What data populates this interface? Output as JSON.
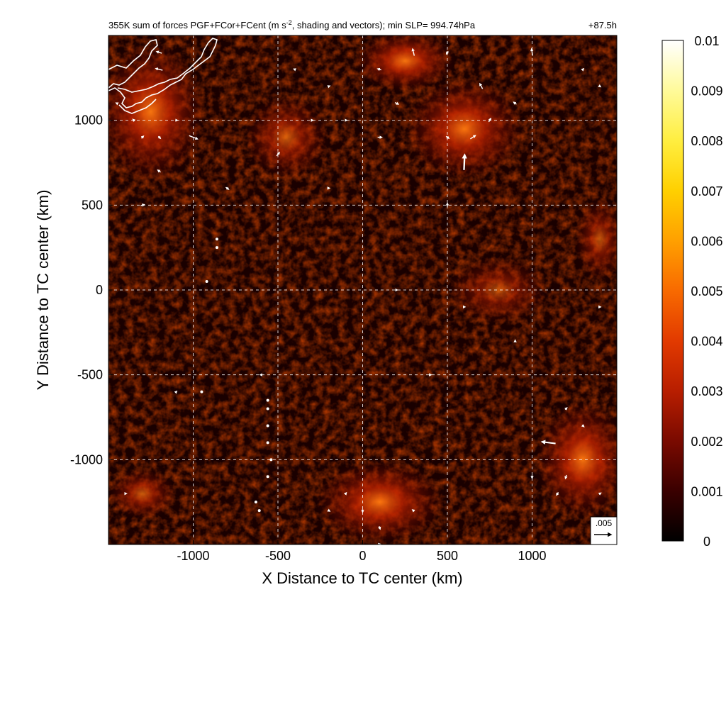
{
  "chart_data": {
    "type": "heatmap",
    "title": "355K sum of forces PGF+FCor+FCent (m s",
    "title_superscript": "-2",
    "title_rest": ", shading and vectors); min SLP= 994.74hPa",
    "forecast_hour": "+87.5h",
    "xlabel": "X Distance to TC center (km)",
    "ylabel": "Y Distance to TC center (km)",
    "xlim": [
      -1500,
      1500
    ],
    "ylim": [
      -1500,
      1500
    ],
    "x_ticks": [
      -1000,
      -500,
      0,
      500,
      1000
    ],
    "y_ticks": [
      -1000,
      -500,
      0,
      500,
      1000
    ],
    "x_tick_labels": [
      "-1000",
      "-500",
      "0",
      "500",
      "1000"
    ],
    "y_tick_labels": [
      "-1000",
      "-500",
      "0",
      "500",
      "1000"
    ],
    "grid": true,
    "colorbar": {
      "min": 0,
      "max": 0.01,
      "ticks": [
        0,
        0.001,
        0.002,
        0.003,
        0.004,
        0.005,
        0.006,
        0.007,
        0.008,
        0.009,
        0.01
      ],
      "tick_labels": [
        "0",
        "0.001",
        "0.002",
        "0.003",
        "0.004",
        "0.005",
        "0.006",
        "0.007",
        "0.008",
        "0.009",
        "0.01"
      ],
      "colors": [
        "#000000",
        "#3a0000",
        "#7a0a00",
        "#b81e00",
        "#e23a00",
        "#f86a00",
        "#ffa000",
        "#ffd000",
        "#ffee40",
        "#fffa9a",
        "#ffffff"
      ]
    },
    "reference_vector": {
      "label": ".005",
      "magnitude": 0.005
    },
    "intensity_regions": [
      {
        "x": -1250,
        "y": 1050,
        "rx": 320,
        "ry": 420,
        "value": 0.003
      },
      {
        "x": 600,
        "y": 950,
        "rx": 350,
        "ry": 300,
        "value": 0.003
      },
      {
        "x": 250,
        "y": 1350,
        "rx": 300,
        "ry": 180,
        "value": 0.0025
      },
      {
        "x": 100,
        "y": -1250,
        "rx": 380,
        "ry": 250,
        "value": 0.0028
      },
      {
        "x": 1300,
        "y": -1000,
        "rx": 280,
        "ry": 350,
        "value": 0.0025
      },
      {
        "x": -1300,
        "y": -1200,
        "rx": 200,
        "ry": 150,
        "value": 0.0015
      },
      {
        "x": -450,
        "y": 900,
        "rx": 250,
        "ry": 250,
        "value": 0.0015
      },
      {
        "x": 800,
        "y": 0,
        "rx": 300,
        "ry": 200,
        "value": 0.001
      },
      {
        "x": 1400,
        "y": 300,
        "rx": 150,
        "ry": 250,
        "value": 0.0012
      }
    ],
    "vectors": [
      {
        "x": 600,
        "y": 750,
        "u": 0.0002,
        "v": 0.0045
      },
      {
        "x": 650,
        "y": 900,
        "u": 0.0015,
        "v": 0.001
      },
      {
        "x": 1100,
        "y": -900,
        "u": -0.004,
        "v": 0.0005
      },
      {
        "x": -1000,
        "y": 900,
        "u": 0.0025,
        "v": -0.001
      },
      {
        "x": 300,
        "y": 1400,
        "u": -0.0005,
        "v": 0.002
      },
      {
        "x": 1000,
        "y": 1400,
        "u": -0.0003,
        "v": 0.002
      },
      {
        "x": -1200,
        "y": 1300,
        "u": -0.002,
        "v": 0.0005
      },
      {
        "x": -1200,
        "y": 1400,
        "u": -0.0015,
        "v": 0.0005
      },
      {
        "x": -500,
        "y": 800,
        "u": 0.0008,
        "v": 0.001
      },
      {
        "x": -1300,
        "y": 500,
        "u": 0.001,
        "v": 0.0003
      },
      {
        "x": -1200,
        "y": 700,
        "u": -0.0008,
        "v": 0.0006
      },
      {
        "x": -800,
        "y": 600,
        "u": 0.0008,
        "v": -0.0006
      },
      {
        "x": 700,
        "y": 1200,
        "u": -0.0008,
        "v": 0.0015
      },
      {
        "x": 500,
        "y": 1400,
        "u": -0.0005,
        "v": -0.0008
      },
      {
        "x": 100,
        "y": 1300,
        "u": -0.001,
        "v": 0.0003
      },
      {
        "x": 100,
        "y": 900,
        "u": 0.0012,
        "v": 0.0
      },
      {
        "x": 200,
        "y": 1100,
        "u": 0.001,
        "v": -0.0005
      },
      {
        "x": 900,
        "y": 1100,
        "u": -0.0008,
        "v": 0.0006
      },
      {
        "x": 750,
        "y": 1000,
        "u": 0.0006,
        "v": 0.001
      },
      {
        "x": 500,
        "y": 900,
        "u": 0.0008,
        "v": -0.0006
      },
      {
        "x": 500,
        "y": 500,
        "u": 0.0,
        "v": 0.001
      },
      {
        "x": -1300,
        "y": 900,
        "u": 0.0006,
        "v": 0.0006
      },
      {
        "x": -1200,
        "y": 900,
        "u": 0.0006,
        "v": -0.0006
      },
      {
        "x": -1100,
        "y": 1000,
        "u": 0.0006,
        "v": 0.0
      },
      {
        "x": -1350,
        "y": 1000,
        "u": -0.0005,
        "v": 0.0005
      },
      {
        "x": -300,
        "y": 1000,
        "u": 0.0006,
        "v": 0.0
      },
      {
        "x": -100,
        "y": 1000,
        "u": 0.0006,
        "v": 0.0
      },
      {
        "x": -200,
        "y": 1200,
        "u": 0.0005,
        "v": 0.0002
      },
      {
        "x": -400,
        "y": 1300,
        "u": -0.0005,
        "v": 0.0002
      },
      {
        "x": 1300,
        "y": -800,
        "u": 0.0005,
        "v": -0.0005
      },
      {
        "x": 1200,
        "y": -700,
        "u": 0.0005,
        "v": 0.0005
      },
      {
        "x": 1200,
        "y": -1100,
        "u": -0.0003,
        "v": -0.001
      },
      {
        "x": 1150,
        "y": -1200,
        "u": -0.0005,
        "v": -0.0008
      },
      {
        "x": 1000,
        "y": -1100,
        "u": 0.0,
        "v": -0.0008
      },
      {
        "x": 1400,
        "y": -1200,
        "u": 0.0005,
        "v": 0.0003
      },
      {
        "x": 0,
        "y": -1300,
        "u": 0.0,
        "v": -0.0008
      },
      {
        "x": 100,
        "y": -1400,
        "u": 0.0003,
        "v": -0.0008
      },
      {
        "x": -200,
        "y": -1300,
        "u": 0.0005,
        "v": -0.0003
      },
      {
        "x": 300,
        "y": -1300,
        "u": -0.0005,
        "v": 0.0004
      },
      {
        "x": -100,
        "y": -1200,
        "u": 0.0003,
        "v": 0.0004
      },
      {
        "x": 100,
        "y": -1500,
        "u": -0.0005,
        "v": 0.0005
      },
      {
        "x": -1400,
        "y": -1200,
        "u": 0.0005,
        "v": 0.0
      },
      {
        "x": 1300,
        "y": 1300,
        "u": 0.0003,
        "v": 0.0003
      },
      {
        "x": 1400,
        "y": 1200,
        "u": 0.0003,
        "v": -0.0002
      },
      {
        "x": -1450,
        "y": 1100,
        "u": -0.0004,
        "v": 0.0002
      },
      {
        "x": 200,
        "y": 0,
        "u": 0.0003,
        "v": 0.0
      },
      {
        "x": 600,
        "y": -100,
        "u": 0.0003,
        "v": 0.0
      },
      {
        "x": 900,
        "y": -300,
        "u": 0.0,
        "v": 0.0003
      },
      {
        "x": -600,
        "y": -500,
        "u": -0.0003,
        "v": 0.0
      },
      {
        "x": -1100,
        "y": -600,
        "u": 0.0002,
        "v": 0.0002
      },
      {
        "x": 400,
        "y": -500,
        "u": 0.0003,
        "v": 0.0
      },
      {
        "x": 1400,
        "y": -100,
        "u": 0.0003,
        "v": 0.0
      },
      {
        "x": -200,
        "y": 600,
        "u": 0.0003,
        "v": 0.0
      }
    ],
    "coastline_label": "coastline",
    "annotation_dots": [
      {
        "x": -560,
        "y": -650
      },
      {
        "x": -560,
        "y": -700
      },
      {
        "x": -560,
        "y": -800
      },
      {
        "x": -560,
        "y": -900
      },
      {
        "x": -540,
        "y": -1000
      },
      {
        "x": -560,
        "y": -1100
      },
      {
        "x": -630,
        "y": -1250
      },
      {
        "x": -610,
        "y": -1300
      },
      {
        "x": -860,
        "y": 300
      },
      {
        "x": -860,
        "y": 250
      },
      {
        "x": -920,
        "y": 50
      },
      {
        "x": -950,
        "y": -600
      }
    ]
  }
}
